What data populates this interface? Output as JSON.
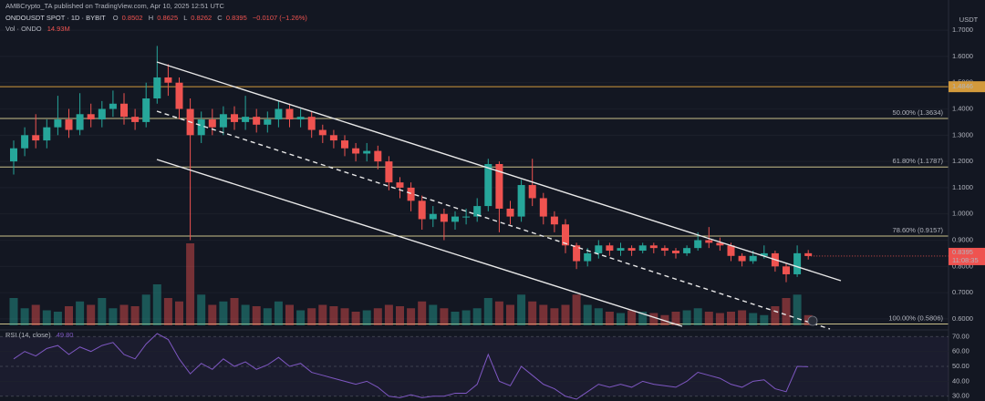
{
  "header": {
    "published": "AMBCrypto_TA published on TradingView.com, Apr 10, 2025 12:51 UTC",
    "symbol": "ONDOUSDT SPOT · 1D · BYBIT",
    "ohlc_keys": [
      "O",
      "H",
      "L",
      "C"
    ],
    "change": "−0.0107 (−1.26%)",
    "volume_label": "Vol · ONDO",
    "volume_value": "14.93M",
    "rsi_label": "RSI (14, close)",
    "rsi_value": "49.80",
    "currency": "USDT"
  },
  "chart_data": {
    "type": "candlestick",
    "open": [
      1.2,
      1.25,
      1.3,
      1.28,
      1.33,
      1.36,
      1.32,
      1.38,
      1.36,
      1.4,
      1.42,
      1.37,
      1.35,
      1.44,
      1.52,
      1.5,
      1.4,
      1.3,
      1.36,
      1.33,
      1.38,
      1.35,
      1.37,
      1.34,
      1.36,
      1.4,
      1.36,
      1.37,
      1.32,
      1.3,
      1.28,
      1.25,
      1.23,
      1.24,
      1.2,
      1.12,
      1.1,
      1.05,
      0.98,
      1.0,
      0.97,
      0.99,
      0.99,
      1.03,
      1.19,
      1.02,
      0.99,
      1.11,
      1.06,
      0.99,
      0.96,
      0.88,
      0.82,
      0.85,
      0.88,
      0.86,
      0.87,
      0.86,
      0.88,
      0.87,
      0.86,
      0.85,
      0.87,
      0.9,
      0.89,
      0.88,
      0.84,
      0.82,
      0.84,
      0.85,
      0.8,
      0.77,
      0.8502
    ],
    "high": [
      1.28,
      1.33,
      1.38,
      1.36,
      1.45,
      1.4,
      1.46,
      1.42,
      1.43,
      1.47,
      1.46,
      1.4,
      1.5,
      1.64,
      1.57,
      1.52,
      1.44,
      1.39,
      1.4,
      1.41,
      1.41,
      1.45,
      1.4,
      1.39,
      1.43,
      1.42,
      1.4,
      1.39,
      1.34,
      1.32,
      1.3,
      1.27,
      1.27,
      1.26,
      1.22,
      1.14,
      1.12,
      1.07,
      1.03,
      1.02,
      1.01,
      1.02,
      1.06,
      1.21,
      1.2,
      1.05,
      1.13,
      1.21,
      1.08,
      1.01,
      0.98,
      0.89,
      0.87,
      0.9,
      0.89,
      0.89,
      0.88,
      0.89,
      0.89,
      0.88,
      0.87,
      0.88,
      0.93,
      0.95,
      0.91,
      0.89,
      0.85,
      0.86,
      0.88,
      0.86,
      0.81,
      0.88,
      0.8625
    ],
    "low": [
      1.15,
      1.22,
      1.25,
      1.25,
      1.3,
      1.29,
      1.3,
      1.33,
      1.33,
      1.37,
      1.34,
      1.32,
      1.33,
      1.42,
      1.45,
      1.36,
      0.9,
      1.27,
      1.3,
      1.3,
      1.32,
      1.32,
      1.31,
      1.31,
      1.33,
      1.33,
      1.33,
      1.29,
      1.27,
      1.25,
      1.22,
      1.2,
      1.2,
      1.17,
      1.09,
      1.06,
      1.01,
      0.94,
      0.95,
      0.9,
      0.94,
      0.96,
      0.97,
      1.01,
      0.93,
      0.96,
      0.97,
      1.03,
      0.96,
      0.93,
      0.85,
      0.79,
      0.8,
      0.83,
      0.84,
      0.84,
      0.84,
      0.85,
      0.85,
      0.84,
      0.83,
      0.84,
      0.86,
      0.87,
      0.86,
      0.82,
      0.8,
      0.81,
      0.83,
      0.78,
      0.74,
      0.76,
      0.8262
    ],
    "close": [
      1.25,
      1.3,
      1.28,
      1.33,
      1.36,
      1.32,
      1.38,
      1.36,
      1.4,
      1.42,
      1.37,
      1.35,
      1.44,
      1.52,
      1.5,
      1.4,
      1.3,
      1.36,
      1.33,
      1.38,
      1.35,
      1.37,
      1.34,
      1.36,
      1.4,
      1.36,
      1.37,
      1.32,
      1.3,
      1.28,
      1.25,
      1.23,
      1.24,
      1.2,
      1.12,
      1.1,
      1.05,
      0.98,
      1.0,
      0.97,
      0.99,
      0.99,
      1.03,
      1.19,
      1.02,
      0.99,
      1.11,
      1.06,
      0.99,
      0.96,
      0.88,
      0.82,
      0.85,
      0.88,
      0.86,
      0.87,
      0.86,
      0.88,
      0.87,
      0.86,
      0.85,
      0.87,
      0.9,
      0.89,
      0.88,
      0.84,
      0.82,
      0.84,
      0.85,
      0.8,
      0.77,
      0.8502,
      0.8395
    ],
    "volume": [
      40,
      25,
      30,
      22,
      20,
      28,
      35,
      30,
      40,
      25,
      30,
      28,
      45,
      60,
      40,
      35,
      120,
      45,
      30,
      35,
      40,
      30,
      28,
      25,
      35,
      30,
      22,
      25,
      30,
      28,
      25,
      20,
      22,
      25,
      30,
      28,
      25,
      35,
      30,
      25,
      20,
      22,
      25,
      40,
      35,
      30,
      45,
      35,
      30,
      25,
      30,
      45,
      30,
      25,
      20,
      18,
      22,
      20,
      18,
      15,
      20,
      22,
      25,
      20,
      18,
      20,
      22,
      18,
      15,
      28,
      40,
      45,
      14.93
    ],
    "rsi": [
      55,
      60,
      57,
      62,
      64,
      58,
      63,
      60,
      64,
      66,
      58,
      55,
      65,
      72,
      68,
      55,
      45,
      52,
      48,
      55,
      50,
      53,
      48,
      51,
      56,
      50,
      52,
      46,
      44,
      42,
      40,
      38,
      40,
      36,
      30,
      29,
      31,
      29,
      30,
      30,
      32,
      32,
      38,
      58,
      40,
      37,
      50,
      44,
      38,
      35,
      30,
      28,
      33,
      38,
      36,
      38,
      36,
      40,
      38,
      37,
      36,
      40,
      46,
      44,
      42,
      38,
      36,
      40,
      41,
      35,
      33,
      50,
      49.8
    ],
    "ylim": [
      0.565,
      1.815
    ],
    "yticks": [
      {
        "value": 0.6,
        "label": "0.6000"
      },
      {
        "value": 0.7,
        "label": "0.7000"
      },
      {
        "value": 0.8,
        "label": "0.8000"
      },
      {
        "value": 0.9,
        "label": "0.9000"
      },
      {
        "value": 1.0,
        "label": "1.0000"
      },
      {
        "value": 1.1,
        "label": "1.1000"
      },
      {
        "value": 1.2,
        "label": "1.2000"
      },
      {
        "value": 1.3,
        "label": "1.3000"
      },
      {
        "value": 1.4,
        "label": "1.4000"
      },
      {
        "value": 1.5,
        "label": "1.5000"
      },
      {
        "value": 1.6,
        "label": "1.6000"
      },
      {
        "value": 1.7,
        "label": "1.7000"
      }
    ],
    "rsi_ylim": [
      28,
      72
    ],
    "rsi_yticks": [
      {
        "value": 30,
        "label": "30.00"
      },
      {
        "value": 40,
        "label": "40.00"
      },
      {
        "value": 50,
        "label": "50.00"
      },
      {
        "value": 60,
        "label": "60.00"
      },
      {
        "value": 70,
        "label": "70.00"
      }
    ],
    "levels": [
      {
        "value": 1.4846,
        "label": "1.4846",
        "color": "#d39a3c",
        "label_position": "axis"
      },
      {
        "value": 1.3634,
        "label": "50.00% (1.3634)",
        "color": "#c9c08a",
        "label_position": "inline"
      },
      {
        "value": 1.1787,
        "label": "61.80% (1.1787)",
        "color": "#c9c08a",
        "label_position": "inline"
      },
      {
        "value": 0.9157,
        "label": "78.60% (0.9157)",
        "color": "#c9c08a",
        "label_position": "inline"
      },
      {
        "value": 0.5806,
        "label": "100.00% (0.5806)",
        "color": "#c9c08a",
        "label_position": "inline"
      }
    ],
    "last_price_label": "0.8395",
    "countdown": "11:08:35",
    "up_color": "#26a69a",
    "down_color": "#ef5350",
    "rsi_color": "#7e57c2"
  }
}
